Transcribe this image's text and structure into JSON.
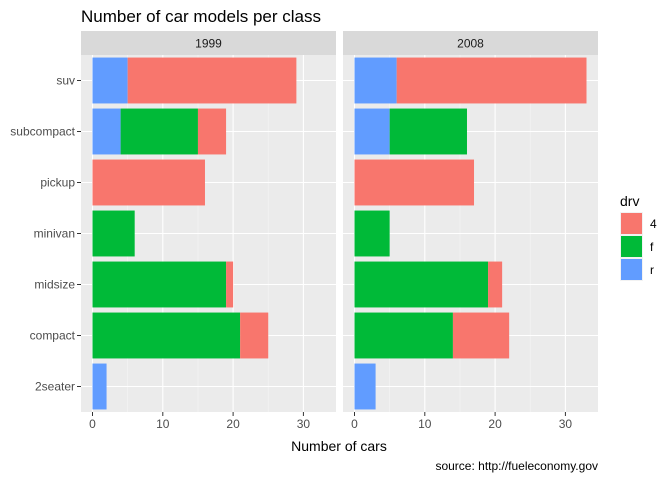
{
  "chart_data": {
    "type": "bar",
    "orientation": "horizontal",
    "stacked": true,
    "title": "Number of car models per class",
    "xlabel": "Number of cars",
    "ylabel": "",
    "caption": "source: http://fueleconomy.gov",
    "xlim": [
      0,
      33
    ],
    "xticks": [
      0,
      10,
      20,
      30
    ],
    "grid": true,
    "legend_position": "right",
    "legend": {
      "title": "drv",
      "items": [
        {
          "key": "4",
          "label": "4",
          "color": "#F8766D"
        },
        {
          "key": "f",
          "label": "f",
          "color": "#00BA38"
        },
        {
          "key": "r",
          "label": "r",
          "color": "#619CFF"
        }
      ]
    },
    "categories": [
      "suv",
      "subcompact",
      "pickup",
      "minivan",
      "midsize",
      "compact",
      "2seater"
    ],
    "stack_order": [
      "r",
      "f",
      "4"
    ],
    "panels": [
      {
        "label": "1999",
        "series": [
          {
            "name": "4",
            "values": [
              24,
              4,
              16,
              0,
              1,
              4,
              0
            ]
          },
          {
            "name": "f",
            "values": [
              0,
              11,
              0,
              6,
              19,
              21,
              0
            ]
          },
          {
            "name": "r",
            "values": [
              5,
              4,
              0,
              0,
              0,
              0,
              2
            ]
          }
        ]
      },
      {
        "label": "2008",
        "series": [
          {
            "name": "4",
            "values": [
              27,
              0,
              17,
              0,
              2,
              8,
              0
            ]
          },
          {
            "name": "f",
            "values": [
              0,
              11,
              0,
              5,
              19,
              14,
              0
            ]
          },
          {
            "name": "r",
            "values": [
              6,
              5,
              0,
              0,
              0,
              0,
              3
            ]
          }
        ]
      }
    ]
  }
}
